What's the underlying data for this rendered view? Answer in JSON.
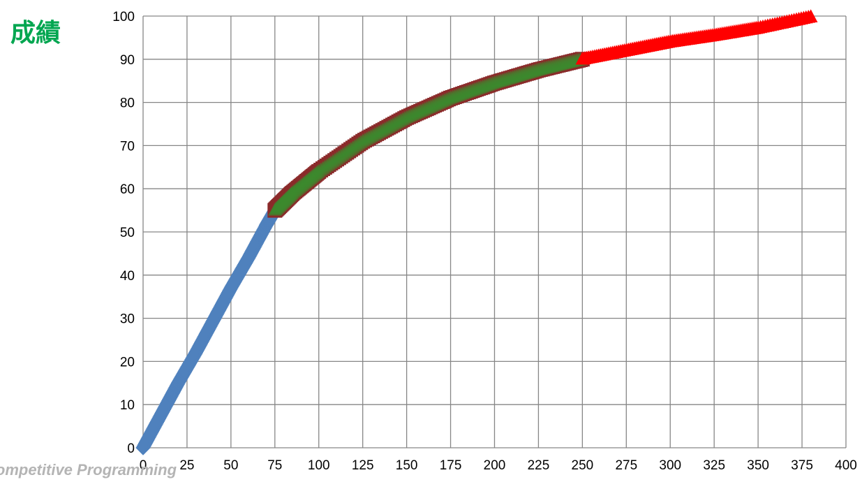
{
  "chart_data": {
    "type": "scatter",
    "ylabel": "成績",
    "xlabel": "",
    "xlim": [
      0,
      400
    ],
    "ylim": [
      0,
      100
    ],
    "xticks": [
      "0",
      "25",
      "50",
      "75",
      "100",
      "125",
      "150",
      "175",
      "200",
      "225",
      "250",
      "275",
      "300",
      "325",
      "350",
      "375",
      "400"
    ],
    "yticks": [
      "0",
      "10",
      "20",
      "30",
      "40",
      "50",
      "60",
      "70",
      "80",
      "90",
      "100"
    ],
    "grid": true,
    "series": [
      {
        "color": "#4f81bd",
        "marker": "diamond",
        "points": [
          [
            0,
            0
          ],
          [
            10,
            7.5
          ],
          [
            20,
            15
          ],
          [
            30,
            22
          ],
          [
            40,
            29.5
          ],
          [
            50,
            37
          ],
          [
            60,
            44
          ],
          [
            70,
            51.5
          ],
          [
            75,
            55
          ]
        ]
      },
      {
        "color": "#8b2a2a",
        "marker": "square",
        "points": [
          [
            75,
            55
          ],
          [
            85,
            59
          ],
          [
            100,
            64
          ],
          [
            125,
            71
          ],
          [
            150,
            76.5
          ],
          [
            175,
            81
          ],
          [
            200,
            84.5
          ],
          [
            225,
            87.5
          ],
          [
            250,
            90
          ]
        ]
      },
      {
        "color": "#3c8a2e",
        "marker": "triangle",
        "points": [
          [
            75,
            55
          ],
          [
            85,
            59
          ],
          [
            100,
            64
          ],
          [
            125,
            71
          ],
          [
            150,
            76.5
          ],
          [
            175,
            81
          ],
          [
            200,
            84.5
          ],
          [
            225,
            87.5
          ],
          [
            250,
            90
          ]
        ]
      },
      {
        "color": "#ff0000",
        "marker": "triangle",
        "points": [
          [
            250,
            90
          ],
          [
            275,
            92
          ],
          [
            300,
            94
          ],
          [
            325,
            95.5
          ],
          [
            350,
            97.2
          ],
          [
            380,
            99.8
          ]
        ]
      }
    ]
  },
  "footer_text": "Competitive Programming"
}
